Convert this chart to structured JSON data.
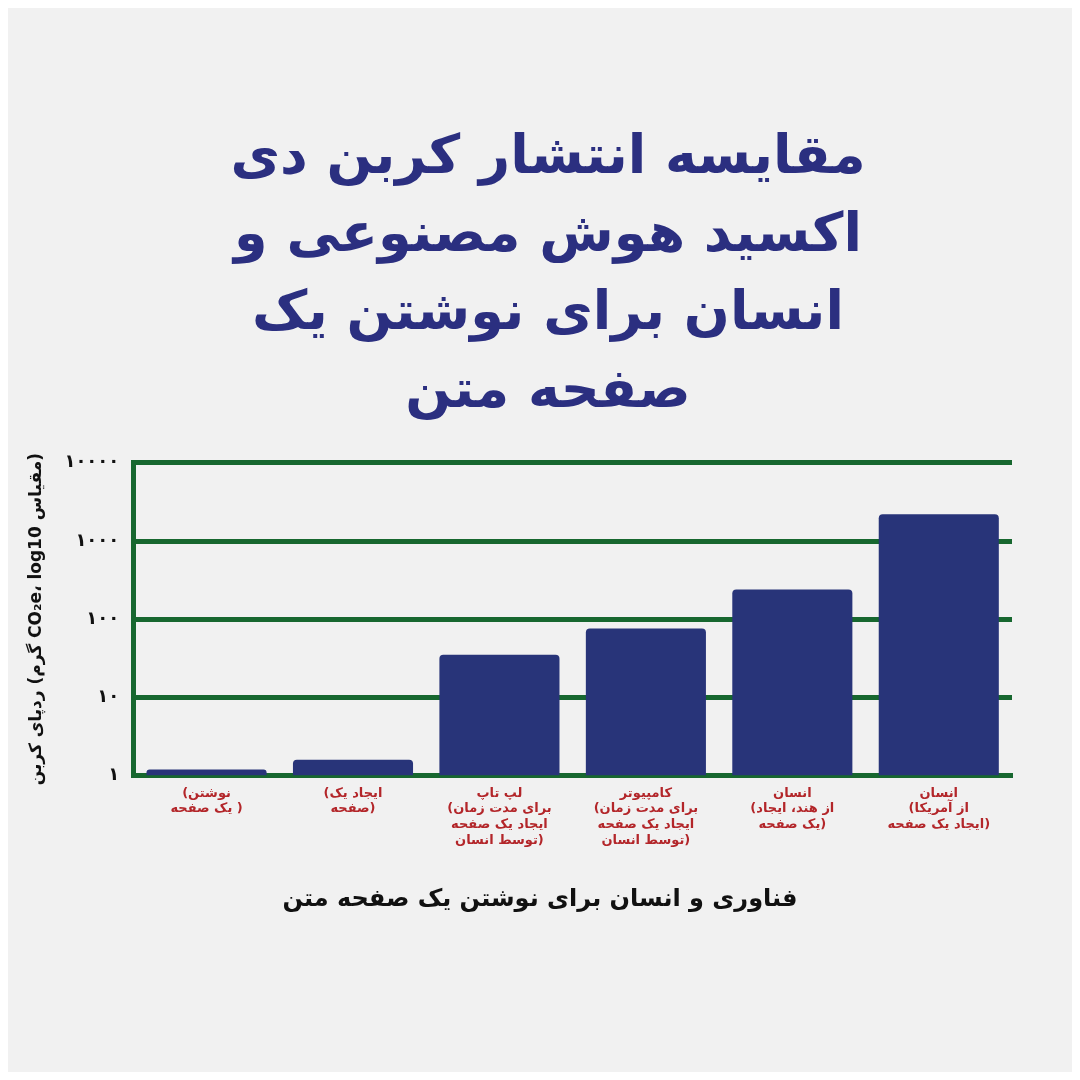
{
  "chart_data": {
    "type": "bar",
    "title": "مقایسه انتشار کربن دی اکسید هوش مصنوعی و انسان برای نوشتن یک صفحه متن",
    "xlabel": "فناوری و انسان برای نوشتن یک صفحه متن",
    "ylabel": "ردپای کربن (گرم CO₂e، log10 مقیاس)",
    "categories": [
      "(نوشتن\nیک صفحه )",
      "(ایجاد یک\nصفحه)",
      "لپ تاپ\n(برای مدت زمان\nایجاد یک صفحه\nتوسط انسان)",
      "کامپیوتر\n(برای مدت زمان\nایجاد یک صفحه\nتوسط انسان)",
      "انسان\n(از هند، ایجاد\nیک صفحه)",
      "انسان\n(از آمریکا\nایجاد یک صفحه)"
    ],
    "values": [
      1.2,
      1.6,
      35,
      76,
      240,
      2200
    ],
    "color": "#283479",
    "log": true,
    "ylim": [
      1,
      10000
    ],
    "yticks": [
      {
        "value": 1,
        "label": "۱"
      },
      {
        "value": 10,
        "label": "۱۰"
      },
      {
        "value": 100,
        "label": "۱۰۰"
      },
      {
        "value": 1000,
        "label": "۱۰۰۰"
      },
      {
        "value": 10000,
        "label": "۱۰۰۰۰"
      }
    ],
    "grid": "y",
    "legend": false
  }
}
